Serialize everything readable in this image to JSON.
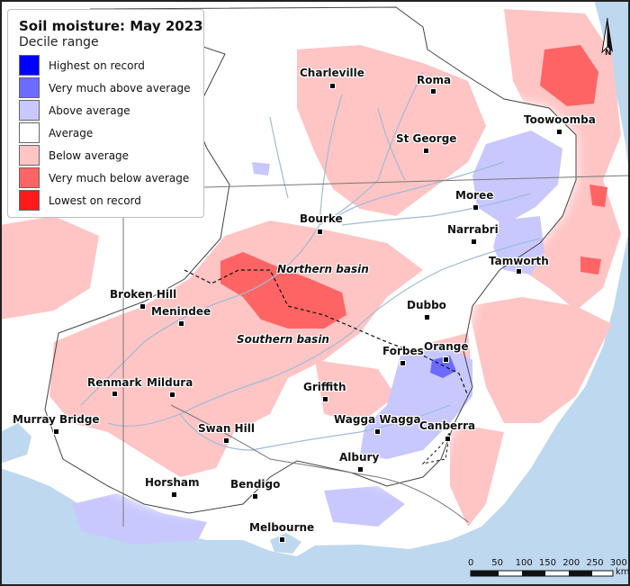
{
  "legend": {
    "title": "Soil moisture: May 2023",
    "subtitle": "Decile range",
    "items": [
      {
        "label": "Highest on record",
        "color": "#0000ff"
      },
      {
        "label": "Very much above average",
        "color": "#6b6bff"
      },
      {
        "label": "Above average",
        "color": "#c8c8ff"
      },
      {
        "label": "Average",
        "color": "#ffffff"
      },
      {
        "label": "Below average",
        "color": "#ffc4c4"
      },
      {
        "label": "Very much below average",
        "color": "#ff6464"
      },
      {
        "label": "Lowest on record",
        "color": "#ff1a1a"
      }
    ]
  },
  "places": [
    {
      "name": "Charleville"
    },
    {
      "name": "Roma"
    },
    {
      "name": "Toowoomba"
    },
    {
      "name": "St George"
    },
    {
      "name": "Moree"
    },
    {
      "name": "Bourke"
    },
    {
      "name": "Narrabri"
    },
    {
      "name": "Tamworth"
    },
    {
      "name": "Broken Hill"
    },
    {
      "name": "Menindee"
    },
    {
      "name": "Dubbo"
    },
    {
      "name": "Forbes"
    },
    {
      "name": "Orange"
    },
    {
      "name": "Renmark"
    },
    {
      "name": "Mildura"
    },
    {
      "name": "Griffith"
    },
    {
      "name": "Murray Bridge"
    },
    {
      "name": "Wagga Wagga"
    },
    {
      "name": "Canberra"
    },
    {
      "name": "Swan Hill"
    },
    {
      "name": "Albury"
    },
    {
      "name": "Horsham"
    },
    {
      "name": "Bendigo"
    },
    {
      "name": "Melbourne"
    }
  ],
  "basins": {
    "northern": "Northern basin",
    "southern": "Southern basin"
  },
  "scale_bar": {
    "ticks": [
      "0",
      "50",
      "100",
      "150",
      "200",
      "250",
      "300"
    ],
    "unit": "km"
  },
  "north_arrow": {
    "label": "N"
  },
  "colors": {
    "ocean": "#bed8f0",
    "land": "#ffffff",
    "rivers": "#9fbcd6",
    "below_average": "#ffc4c4",
    "very_much_below": "#ff6464",
    "above_average": "#c8c8ff",
    "very_much_above": "#6b6bff"
  }
}
